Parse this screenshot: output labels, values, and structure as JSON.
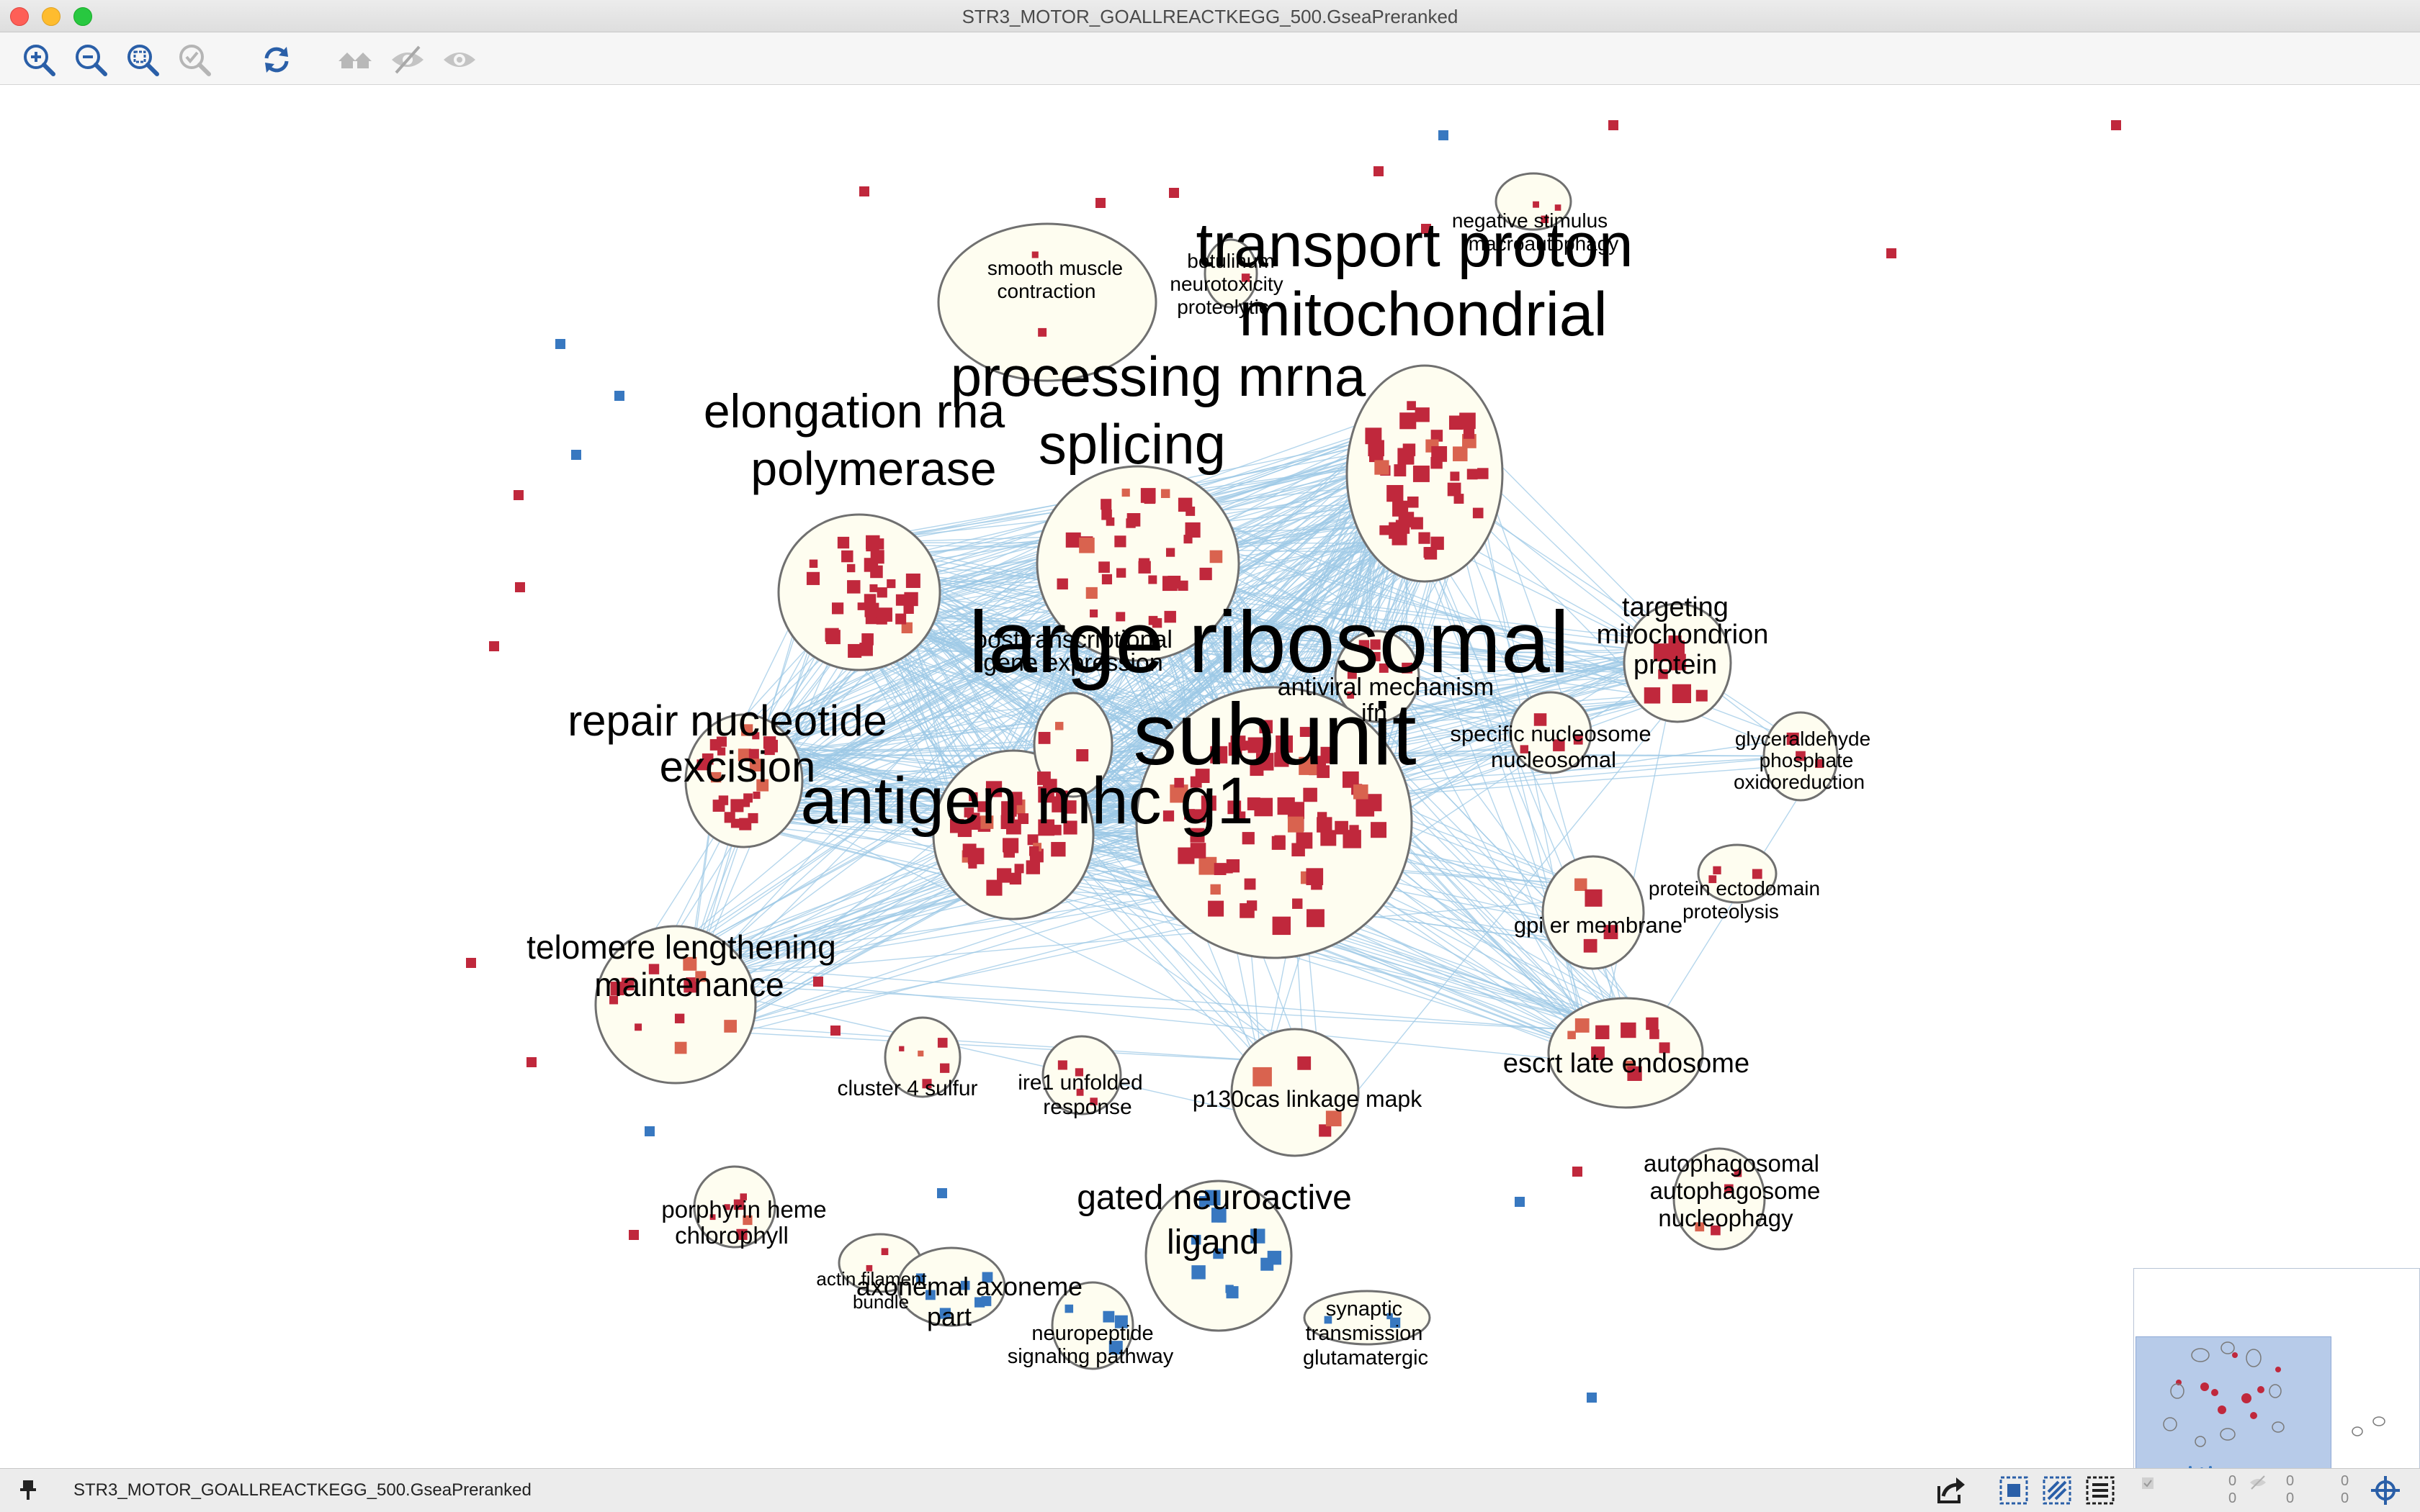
{
  "window": {
    "title": "STR3_MOTOR_GOALLREACTKEGG_500.GseaPreranked"
  },
  "toolbar": {
    "buttons": [
      {
        "name": "zoom-in-button",
        "icon": "zoom-in-icon"
      },
      {
        "name": "zoom-out-button",
        "icon": "zoom-out-icon"
      },
      {
        "name": "zoom-fit-button",
        "icon": "zoom-fit-icon"
      },
      {
        "name": "zoom-selected-button",
        "icon": "zoom-selected-icon"
      },
      {
        "name": "refresh-button",
        "icon": "refresh-icon"
      },
      {
        "name": "home-button",
        "icon": "home-icon"
      },
      {
        "name": "hide-button",
        "icon": "eye-hidden-icon"
      },
      {
        "name": "show-button",
        "icon": "eye-icon"
      }
    ]
  },
  "network": {
    "colors": {
      "node_red": "#c0283c",
      "node_light_red": "#d9634f",
      "node_blue": "#3878c0",
      "edge": "#9cc8e6",
      "cluster_fill": "#fefdf0",
      "cluster_stroke": "#707070"
    },
    "labels": {
      "transport_proton": "transport proton",
      "mitochondrial": "mitochondrial",
      "processing_mrna": "processing mrna",
      "splicing": "splicing",
      "elongation_rna": "elongation rna",
      "polymerase": "polymerase",
      "large_ribosomal": "large ribosomal",
      "subunit": "subunit",
      "posttranscriptional_1": "posttranscriptional",
      "posttranscriptional_2": "gene expression",
      "antiviral_mechanism": "antiviral mechanism",
      "ifn": "ifn",
      "repair_nucleotide": "repair nucleotide",
      "excision": "excision",
      "antigen_mhc": "antigen mhc g1",
      "targeting_1": "targeting",
      "targeting_2": "mitochondrion",
      "targeting_3": "protein",
      "specific_nucleosome_1": "specific nucleosome",
      "specific_nucleosome_2": "nucleosomal",
      "glyceraldehyde_1": "glyceraldehyde",
      "glyceraldehyde_2": "phosphate",
      "glyceraldehyde_3": "oxidoreduction",
      "negative_stimulus_1": "negative stimulus",
      "negative_stimulus_2": "macroautophagy",
      "smooth_muscle_1": "smooth muscle",
      "smooth_muscle_2": "contraction",
      "botulinum_1": "botulinum",
      "botulinum_2": "neurotoxicity",
      "botulinum_3": "proteolytic",
      "telomere_1": "telomere lengthening",
      "telomere_2": "maintenance",
      "gpi_er": "gpi er membrane",
      "protein_ectodomain_1": "protein ectodomain",
      "protein_ectodomain_2": "proteolysis",
      "escrt": "escrt late endosome",
      "cluster4": "cluster 4 sulfur",
      "ire1_1": "ire1 unfolded",
      "ire1_2": "response",
      "p130cas": "p130cas linkage mapk",
      "gated_1": "gated neuroactive",
      "gated_2": "ligand",
      "autophagosomal_1": "autophagosomal",
      "autophagosomal_2": "autophagosome",
      "autophagosomal_3": "nucleophagy",
      "porphyrin_1": "porphyrin heme",
      "porphyrin_2": "chlorophyll",
      "actin_1": "actin filament",
      "actin_2": "bundle",
      "axonemal_1": "axonemal axoneme",
      "axonemal_2": "part",
      "neuropeptide_1": "neuropeptide",
      "neuropeptide_2": "signaling pathway",
      "synaptic_1": "synaptic",
      "synaptic_2": "transmission",
      "synaptic_3": "glutamatergic"
    }
  },
  "statusbar": {
    "text": "STR3_MOTOR_GOALLREACTKEGG_500.GseaPreranked",
    "counters": [
      "0",
      "0",
      "0",
      "0",
      "0",
      "0"
    ]
  }
}
